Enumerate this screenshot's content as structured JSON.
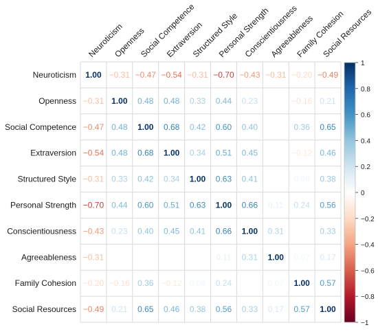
{
  "chart_data": {
    "type": "heatmap",
    "title": "",
    "variables": [
      "Neuroticism",
      "Openness",
      "Social Competence",
      "Extraversion",
      "Structured Style",
      "Personal Strength",
      "Conscientiousness",
      "Agreeableness",
      "Family Cohesion",
      "Social Resources"
    ],
    "matrix": [
      [
        1.0,
        -0.31,
        -0.47,
        -0.54,
        -0.31,
        -0.7,
        -0.43,
        -0.31,
        -0.2,
        -0.49
      ],
      [
        -0.31,
        1.0,
        0.48,
        0.48,
        0.33,
        0.44,
        0.23,
        0.01,
        -0.16,
        0.21
      ],
      [
        -0.47,
        0.48,
        1.0,
        0.68,
        0.42,
        0.6,
        0.4,
        0.02,
        0.36,
        0.65
      ],
      [
        -0.54,
        0.48,
        0.68,
        1.0,
        0.34,
        0.51,
        0.45,
        0.04,
        -0.12,
        0.46
      ],
      [
        -0.31,
        0.33,
        0.42,
        0.34,
        1.0,
        0.63,
        0.41,
        0.03,
        0.06,
        0.38
      ],
      [
        -0.7,
        0.44,
        0.6,
        0.51,
        0.63,
        1.0,
        0.66,
        0.11,
        0.24,
        0.56
      ],
      [
        -0.43,
        0.23,
        0.4,
        0.45,
        0.41,
        0.66,
        1.0,
        0.31,
        0.03,
        0.33
      ],
      [
        -0.31,
        0.01,
        0.02,
        0.04,
        0.03,
        0.11,
        0.31,
        1.0,
        0.07,
        0.17
      ],
      [
        -0.2,
        -0.16,
        0.36,
        -0.12,
        0.06,
        0.24,
        0.03,
        0.07,
        1.0,
        0.57
      ],
      [
        -0.49,
        0.21,
        0.65,
        0.46,
        0.38,
        0.56,
        0.33,
        0.17,
        0.57,
        1.0
      ]
    ],
    "displayed_labels": [
      [
        "1.00",
        "-0.31",
        "-0.47",
        "-0.54",
        "-0.31",
        "-0.70",
        "-0.43",
        "-0.31",
        "-0.20",
        "-0.49"
      ],
      [
        "-0.31",
        "1.00",
        "0.48",
        "0.48",
        "0.33",
        "0.44",
        "0.23",
        "",
        "-0.16",
        "0.21"
      ],
      [
        "-0.47",
        "0.48",
        "1.00",
        "0.68",
        "0.42",
        "0.60",
        "0.40",
        "",
        "0.36",
        "0.65"
      ],
      [
        "-0.54",
        "0.48",
        "0.68",
        "1.00",
        "0.34",
        "0.51",
        "0.45",
        "",
        "-0.12",
        "0.46"
      ],
      [
        "-0.31",
        "0.33",
        "0.42",
        "0.34",
        "1.00",
        "0.63",
        "0.41",
        "",
        "0.06",
        "0.38"
      ],
      [
        "-0.70",
        "0.44",
        "0.60",
        "0.51",
        "0.63",
        "1.00",
        "0.66",
        "0.11",
        "0.24",
        "0.56"
      ],
      [
        "-0.43",
        "0.23",
        "0.40",
        "0.45",
        "0.41",
        "0.66",
        "1.00",
        "0.31",
        "",
        "0.33"
      ],
      [
        "-0.31",
        "",
        "",
        "",
        "",
        "0.11",
        "0.31",
        "1.00",
        "0.07",
        "0.17"
      ],
      [
        "-0.20",
        "-0.16",
        "0.36",
        "-0.12",
        "0.06",
        "0.24",
        "",
        "0.07",
        "1.00",
        "0.57"
      ],
      [
        "-0.49",
        "0.21",
        "0.65",
        "0.46",
        "0.38",
        "0.56",
        "0.33",
        "0.17",
        "0.57",
        "1.00"
      ]
    ],
    "color_scale": {
      "min": -1,
      "max": 1,
      "ticks": [
        -1,
        -0.8,
        -0.6,
        -0.4,
        -0.2,
        0,
        0.2,
        0.4,
        0.6,
        0.8,
        1
      ],
      "tick_labels": [
        "-1",
        "-0.8",
        "-0.6",
        "-0.4",
        "-0.2",
        "0",
        "0.2",
        "0.4",
        "0.6",
        "0.8",
        "1"
      ],
      "stops": [
        "#67001f",
        "#b2182b",
        "#d6604d",
        "#f4a582",
        "#fddbc7",
        "#ffffff",
        "#d1e5f0",
        "#92c5de",
        "#4393c3",
        "#2166ac",
        "#053061"
      ]
    },
    "legend_placement": "right",
    "grid": true
  }
}
